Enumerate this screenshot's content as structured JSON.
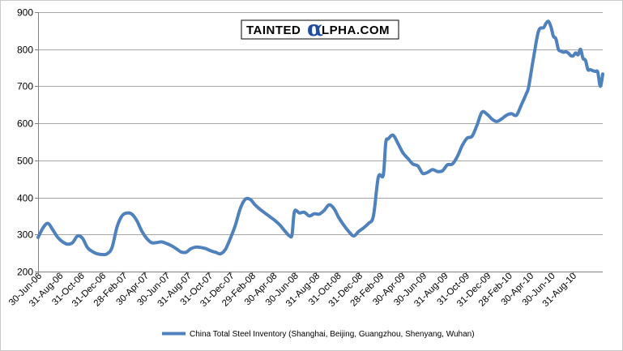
{
  "chart_data": {
    "type": "line",
    "title": "",
    "xlabel": "",
    "ylabel": "",
    "ylim": [
      200,
      900
    ],
    "yticks": [
      200,
      300,
      400,
      500,
      600,
      700,
      800,
      900
    ],
    "grid": "horizontal",
    "legend_position": "bottom",
    "x_tick_labels": [
      "30-Jun-06",
      "31-Aug-06",
      "31-Oct-06",
      "31-Dec-06",
      "28-Feb-07",
      "30-Apr-07",
      "30-Jun-07",
      "31-Aug-07",
      "31-Oct-07",
      "31-Dec-07",
      "29-Feb-08",
      "30-Apr-08",
      "30-Jun-08",
      "31-Aug-08",
      "31-Oct-08",
      "31-Dec-08",
      "28-Feb-09",
      "30-Apr-09",
      "30-Jun-09",
      "31-Aug-09",
      "31-Oct-09",
      "31-Dec-09",
      "28-Feb-10",
      "30-Apr-10",
      "30-Jun-10",
      "31-Aug-10"
    ],
    "series": [
      {
        "name": "China Total Steel Inventory (Shanghai, Beijing, Guangzhou, Shenyang, Wuhan)",
        "color": "#4f81bd",
        "points": [
          [
            "2006-06-30",
            292
          ],
          [
            "2006-07-14",
            318
          ],
          [
            "2006-07-28",
            330
          ],
          [
            "2006-08-11",
            312
          ],
          [
            "2006-08-25",
            292
          ],
          [
            "2006-09-08",
            280
          ],
          [
            "2006-09-22",
            274
          ],
          [
            "2006-10-06",
            278
          ],
          [
            "2006-10-20",
            296
          ],
          [
            "2006-11-03",
            290
          ],
          [
            "2006-11-17",
            265
          ],
          [
            "2006-12-01",
            254
          ],
          [
            "2006-12-15",
            248
          ],
          [
            "2006-12-29",
            246
          ],
          [
            "2007-01-12",
            248
          ],
          [
            "2007-01-26",
            265
          ],
          [
            "2007-02-09",
            320
          ],
          [
            "2007-02-23",
            350
          ],
          [
            "2007-03-09",
            358
          ],
          [
            "2007-03-23",
            355
          ],
          [
            "2007-04-06",
            338
          ],
          [
            "2007-04-20",
            310
          ],
          [
            "2007-05-04",
            290
          ],
          [
            "2007-05-18",
            278
          ],
          [
            "2007-06-01",
            278
          ],
          [
            "2007-06-15",
            280
          ],
          [
            "2007-06-29",
            276
          ],
          [
            "2007-07-13",
            270
          ],
          [
            "2007-07-27",
            262
          ],
          [
            "2007-08-10",
            253
          ],
          [
            "2007-08-24",
            252
          ],
          [
            "2007-09-07",
            262
          ],
          [
            "2007-09-21",
            266
          ],
          [
            "2007-10-05",
            265
          ],
          [
            "2007-10-19",
            262
          ],
          [
            "2007-11-02",
            256
          ],
          [
            "2007-11-16",
            252
          ],
          [
            "2007-11-30",
            248
          ],
          [
            "2007-12-14",
            260
          ],
          [
            "2007-12-28",
            290
          ],
          [
            "2008-01-11",
            325
          ],
          [
            "2008-01-25",
            370
          ],
          [
            "2008-02-08",
            395
          ],
          [
            "2008-02-22",
            395
          ],
          [
            "2008-03-07",
            380
          ],
          [
            "2008-03-21",
            368
          ],
          [
            "2008-04-04",
            358
          ],
          [
            "2008-04-18",
            348
          ],
          [
            "2008-05-02",
            338
          ],
          [
            "2008-05-16",
            326
          ],
          [
            "2008-05-30",
            310
          ],
          [
            "2008-06-13",
            296
          ],
          [
            "2008-06-20",
            300
          ],
          [
            "2008-06-27",
            362
          ],
          [
            "2008-07-11",
            358
          ],
          [
            "2008-07-25",
            360
          ],
          [
            "2008-08-08",
            350
          ],
          [
            "2008-08-22",
            356
          ],
          [
            "2008-09-05",
            355
          ],
          [
            "2008-09-19",
            365
          ],
          [
            "2008-10-03",
            380
          ],
          [
            "2008-10-17",
            370
          ],
          [
            "2008-10-31",
            345
          ],
          [
            "2008-11-14",
            325
          ],
          [
            "2008-11-28",
            308
          ],
          [
            "2008-12-12",
            296
          ],
          [
            "2008-12-26",
            308
          ],
          [
            "2009-01-09",
            318
          ],
          [
            "2009-01-23",
            330
          ],
          [
            "2009-02-06",
            350
          ],
          [
            "2009-02-20",
            455
          ],
          [
            "2009-03-06",
            460
          ],
          [
            "2009-03-13",
            548
          ],
          [
            "2009-03-20",
            558
          ],
          [
            "2009-04-03",
            568
          ],
          [
            "2009-04-17",
            545
          ],
          [
            "2009-05-01",
            520
          ],
          [
            "2009-05-15",
            505
          ],
          [
            "2009-05-29",
            490
          ],
          [
            "2009-06-12",
            485
          ],
          [
            "2009-06-26",
            465
          ],
          [
            "2009-07-10",
            468
          ],
          [
            "2009-07-24",
            475
          ],
          [
            "2009-08-07",
            470
          ],
          [
            "2009-08-21",
            472
          ],
          [
            "2009-09-04",
            488
          ],
          [
            "2009-09-18",
            490
          ],
          [
            "2009-10-02",
            510
          ],
          [
            "2009-10-16",
            540
          ],
          [
            "2009-10-30",
            560
          ],
          [
            "2009-11-13",
            565
          ],
          [
            "2009-11-27",
            595
          ],
          [
            "2009-12-11",
            630
          ],
          [
            "2009-12-25",
            625
          ],
          [
            "2010-01-08",
            612
          ],
          [
            "2010-01-22",
            605
          ],
          [
            "2010-02-05",
            612
          ],
          [
            "2010-02-19",
            622
          ],
          [
            "2010-03-05",
            626
          ],
          [
            "2010-03-19",
            622
          ],
          [
            "2010-04-02",
            650
          ],
          [
            "2010-04-16",
            680
          ],
          [
            "2010-04-23",
            700
          ],
          [
            "2010-05-07",
            780
          ],
          [
            "2010-05-21",
            850
          ],
          [
            "2010-06-04",
            858
          ],
          [
            "2010-06-11",
            870
          ],
          [
            "2010-06-18",
            875
          ],
          [
            "2010-06-25",
            860
          ],
          [
            "2010-07-02",
            835
          ],
          [
            "2010-07-09",
            828
          ],
          [
            "2010-07-16",
            800
          ],
          [
            "2010-07-23",
            795
          ],
          [
            "2010-07-30",
            792
          ],
          [
            "2010-08-06",
            793
          ],
          [
            "2010-08-13",
            790
          ],
          [
            "2010-08-20",
            783
          ],
          [
            "2010-08-27",
            782
          ],
          [
            "2010-09-03",
            790
          ],
          [
            "2010-09-10",
            785
          ],
          [
            "2010-09-17",
            800
          ],
          [
            "2010-09-24",
            775
          ],
          [
            "2010-10-01",
            770
          ],
          [
            "2010-10-08",
            745
          ],
          [
            "2010-10-15",
            745
          ],
          [
            "2010-10-22",
            742
          ],
          [
            "2010-10-29",
            740
          ],
          [
            "2010-11-05",
            738
          ],
          [
            "2010-11-12",
            700
          ],
          [
            "2010-11-19",
            733
          ]
        ]
      }
    ]
  },
  "watermark": {
    "left_text": "TAINTED",
    "alpha_glyph": "α",
    "right_text": "LPHA.COM"
  }
}
